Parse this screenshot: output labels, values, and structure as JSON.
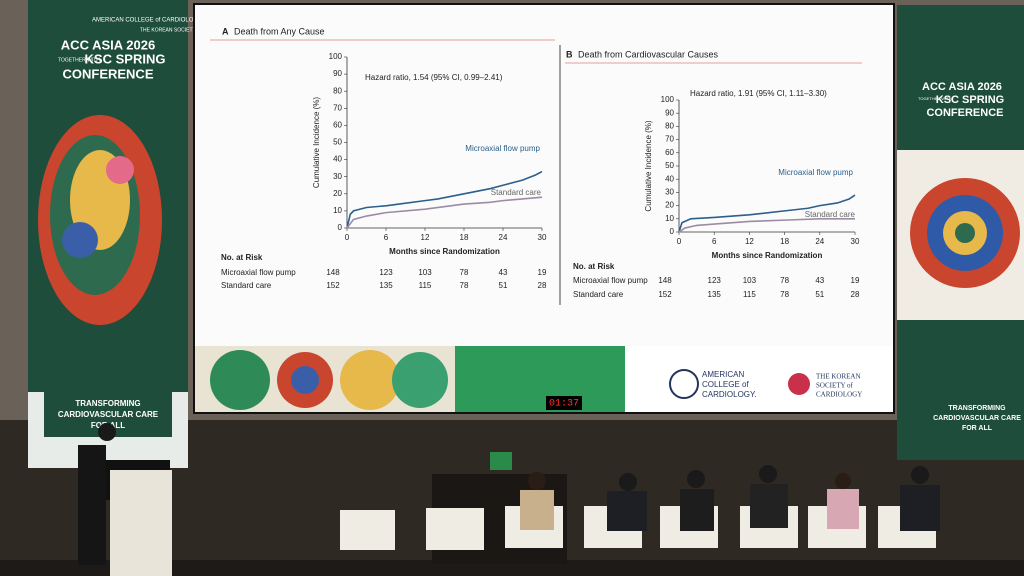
{
  "banners": {
    "left": {
      "org1": "AMERICAN COLLEGE of CARDIOLOGY",
      "org2": "THE KOREAN SOCIETY of CARDIOLOGY",
      "title1": "ACC ASIA 2026",
      "together": "TOGETHER WITH",
      "title2": "KSC SPRING",
      "title3": "CONFERENCE",
      "tagline": [
        "TRANSFORMING",
        "CARDIOVASCULAR CARE",
        "FOR ALL"
      ]
    },
    "right": {
      "title1": "ACC ASIA 2026",
      "together": "TOGETHER WITH",
      "title2": "KSC SPRING",
      "title3": "CONFERENCE",
      "tagline": [
        "TRANSFORMING",
        "CARDIOVASCULAR CARE",
        "FOR ALL"
      ]
    }
  },
  "slide": {
    "logo_acc": [
      "AMERICAN",
      "COLLEGE of",
      "CARDIOLOGY."
    ],
    "logo_ksc": [
      "THE KOREAN",
      "SOCIETY of",
      "CARDIOLOGY"
    ]
  },
  "timer": "01:37",
  "chart_data": [
    {
      "type": "line",
      "panel": "A",
      "title": "Death from Any Cause",
      "annotation": "Hazard ratio, 1.54 (95% CI, 0.99–2.41)",
      "ylabel": "Cumulative Incidence (%)",
      "xlabel": "Months since Randomization",
      "xlim": [
        0,
        30
      ],
      "xticks": [
        0,
        6,
        12,
        18,
        24,
        30
      ],
      "ylim": [
        0,
        100
      ],
      "yticks": [
        0,
        10,
        20,
        30,
        40,
        50,
        60,
        70,
        80,
        90,
        100
      ],
      "series": [
        {
          "name": "Microaxial flow pump",
          "color": "#2b5f8c",
          "x": [
            0,
            0.5,
            1,
            3,
            6,
            8,
            12,
            14,
            18,
            22,
            24,
            27,
            29,
            30
          ],
          "values": [
            0,
            8,
            10,
            12,
            13,
            14,
            16,
            17,
            20,
            23,
            25,
            28,
            31,
            33
          ]
        },
        {
          "name": "Standard care",
          "color": "#9b8ca3",
          "x": [
            0,
            1,
            3,
            6,
            12,
            18,
            22,
            24,
            27,
            30
          ],
          "values": [
            0,
            5,
            7,
            9,
            11,
            14,
            15,
            16,
            17,
            18
          ]
        }
      ],
      "risk_table": {
        "title": "No. at Risk",
        "rows": [
          {
            "name": "Microaxial flow pump",
            "values": [
              148,
              123,
              103,
              78,
              43,
              19
            ]
          },
          {
            "name": "Standard care",
            "values": [
              152,
              135,
              115,
              78,
              51,
              28
            ]
          }
        ]
      }
    },
    {
      "type": "line",
      "panel": "B",
      "title": "Death from Cardiovascular Causes",
      "annotation": "Hazard ratio, 1.91 (95% CI, 1.11–3.30)",
      "ylabel": "Cumulative Incidence (%)",
      "xlabel": "Months since Randomization",
      "xlim": [
        0,
        30
      ],
      "xticks": [
        0,
        6,
        12,
        18,
        24,
        30
      ],
      "ylim": [
        0,
        100
      ],
      "yticks": [
        0,
        10,
        20,
        30,
        40,
        50,
        60,
        70,
        80,
        90,
        100
      ],
      "series": [
        {
          "name": "Microaxial flow pump",
          "color": "#2b5f8c",
          "x": [
            0,
            0.5,
            2,
            6,
            12,
            18,
            22,
            24,
            27,
            29,
            30
          ],
          "values": [
            0,
            7,
            10,
            11,
            13,
            16,
            18,
            20,
            22,
            25,
            28
          ]
        },
        {
          "name": "Standard care",
          "color": "#9b8ca3",
          "x": [
            0,
            1,
            3,
            6,
            12,
            18,
            24,
            30
          ],
          "values": [
            0,
            3,
            5,
            6,
            8,
            9,
            10,
            10
          ]
        }
      ],
      "risk_table": {
        "title": "No. at Risk",
        "rows": [
          {
            "name": "Microaxial flow pump",
            "values": [
              148,
              123,
              103,
              78,
              43,
              19
            ]
          },
          {
            "name": "Standard care",
            "values": [
              152,
              135,
              115,
              78,
              51,
              28
            ]
          }
        ]
      }
    }
  ]
}
